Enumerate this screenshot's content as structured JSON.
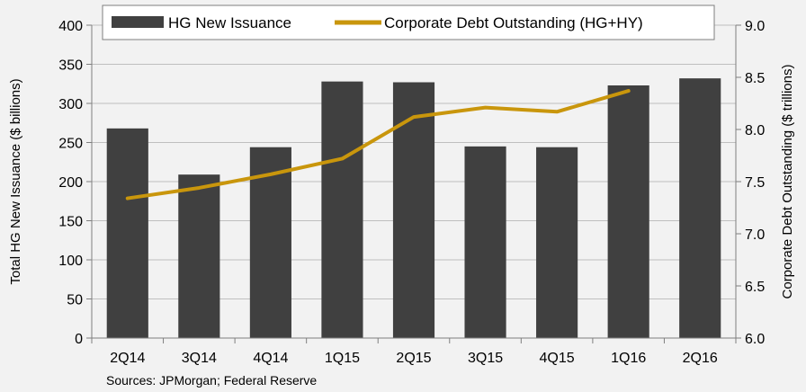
{
  "chart_data": {
    "type": "bar",
    "categories": [
      "2Q14",
      "3Q14",
      "4Q14",
      "1Q15",
      "2Q15",
      "3Q15",
      "4Q15",
      "1Q16",
      "2Q16"
    ],
    "series": [
      {
        "name": "HG New Issuance",
        "type": "bar",
        "axis": "left",
        "color": "#404040",
        "values": [
          268,
          209,
          244,
          328,
          327,
          245,
          244,
          323,
          332
        ]
      },
      {
        "name": "Corporate Debt Outstanding (HG+HY)",
        "type": "line",
        "axis": "right",
        "color": "#c9960c",
        "values": [
          7.34,
          7.44,
          7.57,
          7.72,
          8.12,
          8.21,
          8.17,
          8.37,
          null
        ]
      }
    ],
    "ylabel": "Total HG New Issuance ($ billions)",
    "ylabel_right": "Corporate Debt Outstanding ($ trillions)",
    "ylim": [
      0,
      400
    ],
    "ylim_right": [
      6.0,
      9.0
    ],
    "yticks": [
      "0",
      "50",
      "100",
      "150",
      "200",
      "250",
      "300",
      "350",
      "400"
    ],
    "yticks_right": [
      "6.0",
      "6.5",
      "7.0",
      "7.5",
      "8.0",
      "8.5",
      "9.0"
    ],
    "grid": true,
    "legend_position": "top"
  },
  "source": "Sources: JPMorgan; Federal Reserve"
}
